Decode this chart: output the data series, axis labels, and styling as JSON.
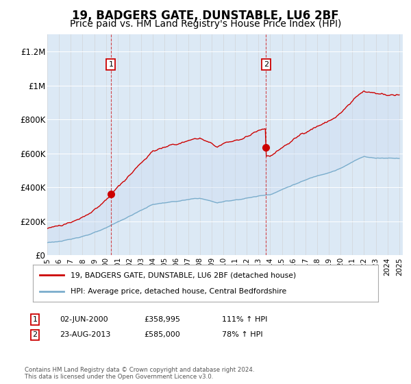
{
  "title": "19, BADGERS GATE, DUNSTABLE, LU6 2BF",
  "subtitle": "Price paid vs. HM Land Registry's House Price Index (HPI)",
  "title_fontsize": 12,
  "subtitle_fontsize": 10,
  "background_color": "#ffffff",
  "plot_bg_color": "#dce9f5",
  "ylim": [
    0,
    1300000
  ],
  "yticks": [
    0,
    200000,
    400000,
    600000,
    800000,
    1000000,
    1200000
  ],
  "ytick_labels": [
    "£0",
    "£200K",
    "£400K",
    "£600K",
    "£800K",
    "£1M",
    "£1.2M"
  ],
  "sale1_date": 2000.42,
  "sale1_price": 358995,
  "sale2_date": 2013.64,
  "sale2_price": 585000,
  "legend_line1": "19, BADGERS GATE, DUNSTABLE, LU6 2BF (detached house)",
  "legend_line2": "HPI: Average price, detached house, Central Bedfordshire",
  "note1_date": "02-JUN-2000",
  "note1_price": "£358,995",
  "note1_hpi": "111% ↑ HPI",
  "note2_date": "23-AUG-2013",
  "note2_price": "£585,000",
  "note2_hpi": "78% ↑ HPI",
  "footer": "Contains HM Land Registry data © Crown copyright and database right 2024.\nThis data is licensed under the Open Government Licence v3.0.",
  "red_color": "#cc0000",
  "blue_color": "#7aadcc",
  "fill_color": "#c8d8f0"
}
